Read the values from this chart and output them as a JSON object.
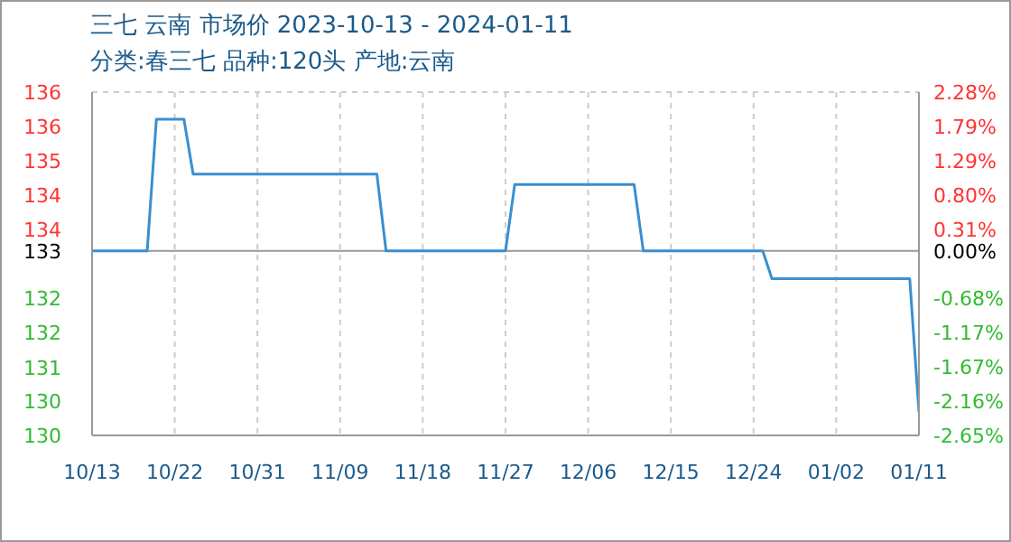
{
  "chart_data": {
    "type": "line",
    "title": "三七 云南 市场价 2023-10-13 - 2024-01-11",
    "subtitle": "分类:春三七 品种:120头 产地:云南",
    "x": [
      "2023-10-13",
      "2023-10-19",
      "2023-10-20",
      "2023-10-23",
      "2023-10-24",
      "2023-11-13",
      "2023-11-14",
      "2023-11-27",
      "2023-11-28",
      "2023-12-11",
      "2023-12-12",
      "2023-12-25",
      "2023-12-26",
      "2024-01-10",
      "2024-01-11"
    ],
    "series": [
      {
        "color": "#3a8fd0",
        "values": [
          133.33,
          133.33,
          135.85,
          135.85,
          134.8,
          134.8,
          133.33,
          133.33,
          134.6,
          134.6,
          133.33,
          133.33,
          132.8,
          132.8,
          130.25
        ]
      }
    ],
    "xlim": [
      "2023-10-13",
      "2024-01-11"
    ],
    "xticks": [
      {
        "value": "2023-10-13",
        "label": "10/13"
      },
      {
        "value": "2023-10-22",
        "label": "10/22"
      },
      {
        "value": "2023-10-31",
        "label": "10/31"
      },
      {
        "value": "2023-11-09",
        "label": "11/09"
      },
      {
        "value": "2023-11-18",
        "label": "11/18"
      },
      {
        "value": "2023-11-27",
        "label": "11/27"
      },
      {
        "value": "2023-12-06",
        "label": "12/06"
      },
      {
        "value": "2023-12-15",
        "label": "12/15"
      },
      {
        "value": "2023-12-24",
        "label": "12/24"
      },
      {
        "value": "2024-01-02",
        "label": "01/02"
      },
      {
        "value": "2024-01-11",
        "label": "01/11"
      }
    ],
    "ylim": [
      129.8,
      136.37
    ],
    "yticks": [
      {
        "value": 136.37,
        "label": "136"
      },
      {
        "value": 135.72,
        "label": "136"
      },
      {
        "value": 135.05,
        "label": "135"
      },
      {
        "value": 134.4,
        "label": "134"
      },
      {
        "value": 133.74,
        "label": "134"
      },
      {
        "value": 133.33,
        "label": "133"
      },
      {
        "value": 132.42,
        "label": "132"
      },
      {
        "value": 131.77,
        "label": "132"
      },
      {
        "value": 131.1,
        "label": "131"
      },
      {
        "value": 130.45,
        "label": "130"
      },
      {
        "value": 129.8,
        "label": "130"
      }
    ],
    "y2lim": [
      -2.65,
      2.28
    ],
    "y2ticks": [
      {
        "value": 2.28,
        "label": "2.28%"
      },
      {
        "value": 1.79,
        "label": "1.79%"
      },
      {
        "value": 1.29,
        "label": "1.29%"
      },
      {
        "value": 0.8,
        "label": "0.80%"
      },
      {
        "value": 0.31,
        "label": "0.31%"
      },
      {
        "value": 0,
        "label": "0.00%"
      },
      {
        "value": -0.68,
        "label": "-0.68%"
      },
      {
        "value": -1.17,
        "label": "-1.17%"
      },
      {
        "value": -1.67,
        "label": "-1.67%"
      },
      {
        "value": -2.16,
        "label": "-2.16%"
      },
      {
        "value": -2.65,
        "label": "-2.65%"
      }
    ],
    "ref_lines": [
      {
        "axis": "y2",
        "value": 0,
        "color": "#999999"
      }
    ],
    "grid": true,
    "legend": false,
    "marker": "none",
    "line_style": "solid"
  }
}
